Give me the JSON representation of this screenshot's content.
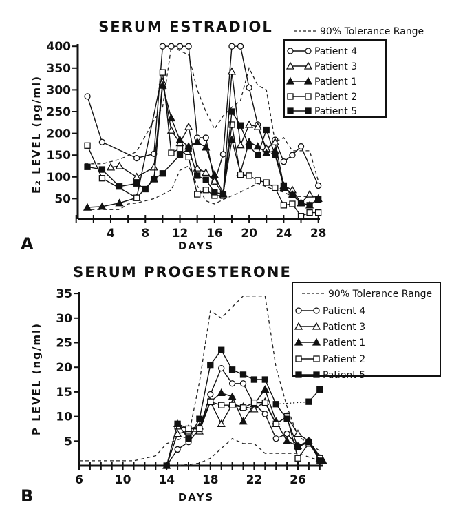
{
  "chart_data": [
    {
      "type": "line",
      "panel": "A",
      "title": "SERUM ESTRADIOL",
      "xlabel": "DAYS",
      "ylabel": "E₂ LEVEL (pg/ml)",
      "xlim": [
        0,
        28
      ],
      "ylim": [
        0,
        400
      ],
      "xticks": [
        4,
        8,
        12,
        16,
        20,
        24,
        28
      ],
      "yticks": [
        50,
        100,
        150,
        200,
        250,
        300,
        350,
        400
      ],
      "legend_position": "top-right",
      "tolerance": {
        "name": "90% Tolerance Range",
        "upper": [
          [
            1,
            130
          ],
          [
            3,
            130
          ],
          [
            5,
            140
          ],
          [
            7,
            158
          ],
          [
            9,
            230
          ],
          [
            10,
            260
          ],
          [
            11,
            400
          ],
          [
            13,
            380
          ],
          [
            14,
            300
          ],
          [
            15,
            250
          ],
          [
            16,
            210
          ],
          [
            17,
            240
          ],
          [
            18,
            260
          ],
          [
            19,
            275
          ],
          [
            20,
            350
          ],
          [
            21,
            310
          ],
          [
            22,
            300
          ],
          [
            23,
            180
          ],
          [
            24,
            190
          ],
          [
            25,
            160
          ],
          [
            26,
            160
          ],
          [
            27,
            160
          ],
          [
            28,
            90
          ]
        ],
        "lower": [
          [
            1,
            25
          ],
          [
            3,
            25
          ],
          [
            5,
            25
          ],
          [
            6,
            38
          ],
          [
            7,
            40
          ],
          [
            9,
            50
          ],
          [
            11,
            70
          ],
          [
            12,
            115
          ],
          [
            13,
            125
          ],
          [
            14,
            80
          ],
          [
            15,
            45
          ],
          [
            16,
            38
          ],
          [
            17,
            48
          ],
          [
            19,
            65
          ],
          [
            21,
            85
          ],
          [
            23,
            70
          ],
          [
            24,
            65
          ],
          [
            25,
            55
          ],
          [
            28,
            55
          ]
        ]
      },
      "series": [
        {
          "name": "Patient 4",
          "marker": "circle-open",
          "points": [
            [
              1.3,
              285
            ],
            [
              3,
              180
            ],
            [
              7,
              143
            ],
            [
              9,
              153
            ],
            [
              10,
              400
            ],
            [
              11,
              400
            ],
            [
              12,
              400
            ],
            [
              13,
              400
            ],
            [
              14,
              190
            ],
            [
              15,
              190
            ],
            [
              16,
              88
            ],
            [
              17,
              152
            ],
            [
              18,
              400
            ],
            [
              19,
              400
            ],
            [
              20,
              305
            ],
            [
              21,
              220
            ],
            [
              22,
              160
            ],
            [
              23,
              185
            ],
            [
              24,
              135
            ],
            [
              25,
              150
            ],
            [
              26,
              170
            ],
            [
              28,
              80
            ]
          ]
        },
        {
          "name": "Patient 3",
          "marker": "triangle-open",
          "points": [
            [
              4,
              122
            ],
            [
              5,
              125
            ],
            [
              7,
              100
            ],
            [
              9,
              122
            ],
            [
              10,
              318
            ],
            [
              11,
              207
            ],
            [
              12,
              178
            ],
            [
              13,
              215
            ],
            [
              14,
              120
            ],
            [
              15,
              110
            ],
            [
              16,
              90
            ],
            [
              17,
              60
            ],
            [
              18,
              342
            ],
            [
              19,
              173
            ],
            [
              20,
              220
            ],
            [
              21,
              215
            ],
            [
              22,
              165
            ],
            [
              23,
              180
            ],
            [
              24,
              80
            ],
            [
              25,
              70
            ],
            [
              26,
              40
            ],
            [
              27,
              60
            ],
            [
              28,
              50
            ]
          ]
        },
        {
          "name": "Patient 1",
          "marker": "triangle-filled",
          "points": [
            [
              1.3,
              30
            ],
            [
              3,
              32
            ],
            [
              5,
              40
            ],
            [
              7,
              52
            ],
            [
              9,
              95
            ],
            [
              10,
              310
            ],
            [
              11,
              235
            ],
            [
              12,
              185
            ],
            [
              13,
              170
            ],
            [
              14,
              180
            ],
            [
              15,
              168
            ],
            [
              16,
              105
            ],
            [
              17,
              62
            ],
            [
              18,
              185
            ],
            [
              19,
              110
            ],
            [
              20,
              180
            ],
            [
              21,
              170
            ],
            [
              22,
              155
            ],
            [
              23,
              160
            ],
            [
              24,
              75
            ],
            [
              25,
              60
            ],
            [
              26,
              40
            ],
            [
              27,
              35
            ],
            [
              28,
              50
            ]
          ]
        },
        {
          "name": "Patient 2",
          "marker": "square-open",
          "points": [
            [
              1.3,
              172
            ],
            [
              3,
              97
            ],
            [
              7,
              52
            ],
            [
              10,
              340
            ],
            [
              11,
              155
            ],
            [
              12,
              165
            ],
            [
              13,
              145
            ],
            [
              14,
              60
            ],
            [
              15,
              70
            ],
            [
              16,
              57
            ],
            [
              17,
              57
            ],
            [
              18,
              220
            ],
            [
              19,
              105
            ],
            [
              20,
              103
            ],
            [
              21,
              92
            ],
            [
              22,
              87
            ],
            [
              23,
              75
            ],
            [
              24,
              35
            ],
            [
              25,
              38
            ],
            [
              26,
              10
            ],
            [
              27,
              18
            ],
            [
              28,
              18
            ]
          ]
        },
        {
          "name": "Patient 5",
          "marker": "square-filled",
          "points": [
            [
              1.3,
              123
            ],
            [
              3,
              117
            ],
            [
              5,
              78
            ],
            [
              7,
              85
            ],
            [
              8,
              72
            ],
            [
              9,
              95
            ],
            [
              10,
              108
            ],
            [
              12,
              150
            ],
            [
              13,
              165
            ],
            [
              14,
              103
            ],
            [
              15,
              93
            ],
            [
              16,
              65
            ],
            [
              17,
              60
            ],
            [
              18,
              250
            ],
            [
              19,
              218
            ],
            [
              20,
              170
            ],
            [
              21,
              150
            ],
            [
              22,
              208
            ],
            [
              23,
              150
            ],
            [
              24,
              80
            ],
            [
              25,
              58
            ],
            [
              26,
              40
            ],
            [
              27,
              35
            ],
            [
              28,
              48
            ]
          ]
        }
      ]
    },
    {
      "type": "line",
      "panel": "B",
      "title": "SERUM PROGESTERONE",
      "xlabel": "DAYS",
      "ylabel": "P LEVEL (ng/ml)",
      "xlim": [
        6,
        28.5
      ],
      "ylim": [
        0,
        35
      ],
      "xticks": [
        6,
        10,
        14,
        18,
        22,
        26
      ],
      "yticks": [
        5,
        10,
        15,
        20,
        25,
        30,
        35
      ],
      "legend_position": "top-right",
      "tolerance": {
        "name": "90% Tolerance Range",
        "upper": [
          [
            6,
            1
          ],
          [
            11,
            1
          ],
          [
            13,
            2
          ],
          [
            14,
            4.5
          ],
          [
            16,
            6
          ],
          [
            17,
            17
          ],
          [
            18,
            31.5
          ],
          [
            19,
            30
          ],
          [
            21,
            34.5
          ],
          [
            23,
            34.5
          ],
          [
            24,
            20
          ],
          [
            25,
            12
          ],
          [
            26,
            6
          ],
          [
            28,
            3
          ]
        ],
        "lower": [
          [
            15,
            0
          ],
          [
            17,
            0.5
          ],
          [
            18,
            1.5
          ],
          [
            20,
            5.5
          ],
          [
            21,
            4.5
          ],
          [
            22,
            4.5
          ],
          [
            23,
            2.5
          ],
          [
            26,
            2.5
          ],
          [
            28,
            1
          ]
        ]
      },
      "series": [
        {
          "name": "Patient 4",
          "marker": "circle-open",
          "points": [
            [
              14,
              0
            ],
            [
              15,
              3.3
            ],
            [
              16,
              4.8
            ],
            [
              17,
              7.5
            ],
            [
              18,
              14.5
            ],
            [
              19,
              19.8
            ],
            [
              20,
              16.7
            ],
            [
              21,
              16.7
            ],
            [
              22,
              12.5
            ],
            [
              23,
              10.5
            ],
            [
              24,
              5.5
            ],
            [
              25,
              6.5
            ],
            [
              26,
              4
            ],
            [
              27,
              5
            ],
            [
              28,
              1
            ]
          ]
        },
        {
          "name": "Patient 3",
          "marker": "triangle-open",
          "points": [
            [
              14,
              0
            ],
            [
              15,
              6.5
            ],
            [
              16,
              7
            ],
            [
              17,
              7
            ],
            [
              18,
              13
            ],
            [
              19,
              8.5
            ],
            [
              20,
              12.5
            ],
            [
              21,
              12
            ],
            [
              22,
              11.5
            ],
            [
              23,
              13
            ],
            [
              24,
              8.5
            ],
            [
              25,
              10
            ],
            [
              26,
              6.5
            ],
            [
              27,
              5
            ],
            [
              28,
              1.5
            ]
          ]
        },
        {
          "name": "Patient 1",
          "marker": "triangle-filled",
          "points": [
            [
              15,
              8.5
            ],
            [
              16,
              7.5
            ],
            [
              17,
              8
            ],
            [
              18,
              13
            ],
            [
              19,
              14.8
            ],
            [
              20,
              14
            ],
            [
              21,
              9
            ],
            [
              22,
              12.5
            ],
            [
              23,
              15.5
            ],
            [
              24,
              9
            ],
            [
              25,
              5
            ],
            [
              26,
              4
            ],
            [
              27,
              5
            ],
            [
              28.3,
              1
            ]
          ]
        },
        {
          "name": "Patient 2",
          "marker": "square-open",
          "points": [
            [
              15,
              8
            ],
            [
              16,
              7.5
            ],
            [
              17,
              7.5
            ],
            [
              18,
              13
            ],
            [
              19,
              12.3
            ],
            [
              20,
              12.3
            ],
            [
              21,
              11.8
            ],
            [
              22,
              12.8
            ],
            [
              23,
              12.8
            ],
            [
              24,
              8.5
            ],
            [
              25,
              10
            ],
            [
              26,
              1.5
            ],
            [
              27,
              4.5
            ],
            [
              28,
              1.5
            ]
          ]
        },
        {
          "name": "Patient 5",
          "marker": "square-filled",
          "points": [
            [
              14,
              0
            ],
            [
              15,
              8.5
            ],
            [
              16,
              5.5
            ],
            [
              17,
              9.5
            ],
            [
              18,
              20.5
            ],
            [
              19,
              23.5
            ],
            [
              20,
              19.5
            ],
            [
              21,
              18.5
            ],
            [
              22,
              17.5
            ],
            [
              23,
              17.5
            ],
            [
              24,
              12.5
            ],
            [
              25,
              9.5
            ],
            [
              26,
              3.8
            ],
            [
              27,
              4.8
            ],
            [
              28,
              1
            ]
          ],
          "extra_dotted": [
            [
              24,
              12.5
            ],
            [
              27,
              13
            ]
          ],
          "extra_solid": [
            [
              27,
              13
            ],
            [
              28,
              15.5
            ]
          ]
        }
      ]
    }
  ]
}
